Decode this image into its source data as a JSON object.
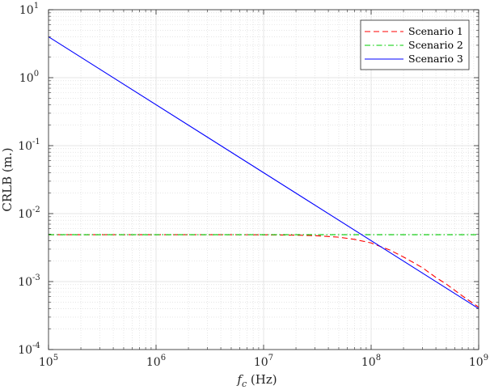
{
  "chart_data": {
    "type": "line",
    "scale": {
      "x": "log",
      "y": "log"
    },
    "xlim": [
      100000,
      1000000000
    ],
    "ylim": [
      0.0001,
      10
    ],
    "grid": true,
    "minor_grid": true,
    "legend_position": "top-right",
    "xlabel": {
      "main": "f",
      "sub": "c",
      "rest": " (Hz)"
    },
    "ylabel": "CRLB (m.)",
    "x_ticks": [
      {
        "value": 100000,
        "base": "10",
        "exp": "5"
      },
      {
        "value": 1000000,
        "base": "10",
        "exp": "6"
      },
      {
        "value": 10000000,
        "base": "10",
        "exp": "7"
      },
      {
        "value": 100000000,
        "base": "10",
        "exp": "8"
      },
      {
        "value": 1000000000,
        "base": "10",
        "exp": "9"
      }
    ],
    "y_ticks": [
      {
        "value": 0.0001,
        "base": "10",
        "exp": "-4"
      },
      {
        "value": 0.001,
        "base": "10",
        "exp": "-3"
      },
      {
        "value": 0.01,
        "base": "10",
        "exp": "-2"
      },
      {
        "value": 0.1,
        "base": "10",
        "exp": "-1"
      },
      {
        "value": 1,
        "base": "10",
        "exp": "0"
      },
      {
        "value": 10,
        "base": "10",
        "exp": "1"
      }
    ],
    "series": [
      {
        "name": "Scenario 1",
        "color": "#ff0000",
        "style": "dashed",
        "points": [
          [
            100000,
            0.0049
          ],
          [
            1000000,
            0.0049
          ],
          [
            3000000,
            0.0049
          ],
          [
            10000000,
            0.00488
          ],
          [
            20000000,
            0.00482
          ],
          [
            30000000,
            0.00474
          ],
          [
            50000000,
            0.0045
          ],
          [
            70000000,
            0.00418
          ],
          [
            100000000,
            0.0037
          ],
          [
            150000000,
            0.0029
          ],
          [
            200000000,
            0.0023
          ],
          [
            300000000,
            0.0016
          ],
          [
            400000000,
            0.00115
          ],
          [
            500000000,
            0.00092
          ],
          [
            700000000,
            0.00062
          ],
          [
            1000000000,
            0.00042
          ]
        ]
      },
      {
        "name": "Scenario 2",
        "color": "#00cc00",
        "style": "dashdot",
        "points": [
          [
            100000,
            0.0049
          ],
          [
            1000000000,
            0.0049
          ]
        ]
      },
      {
        "name": "Scenario 3",
        "color": "#0000ff",
        "style": "solid",
        "points": [
          [
            100000,
            4.0
          ],
          [
            1000000000,
            0.0004
          ]
        ]
      }
    ]
  }
}
